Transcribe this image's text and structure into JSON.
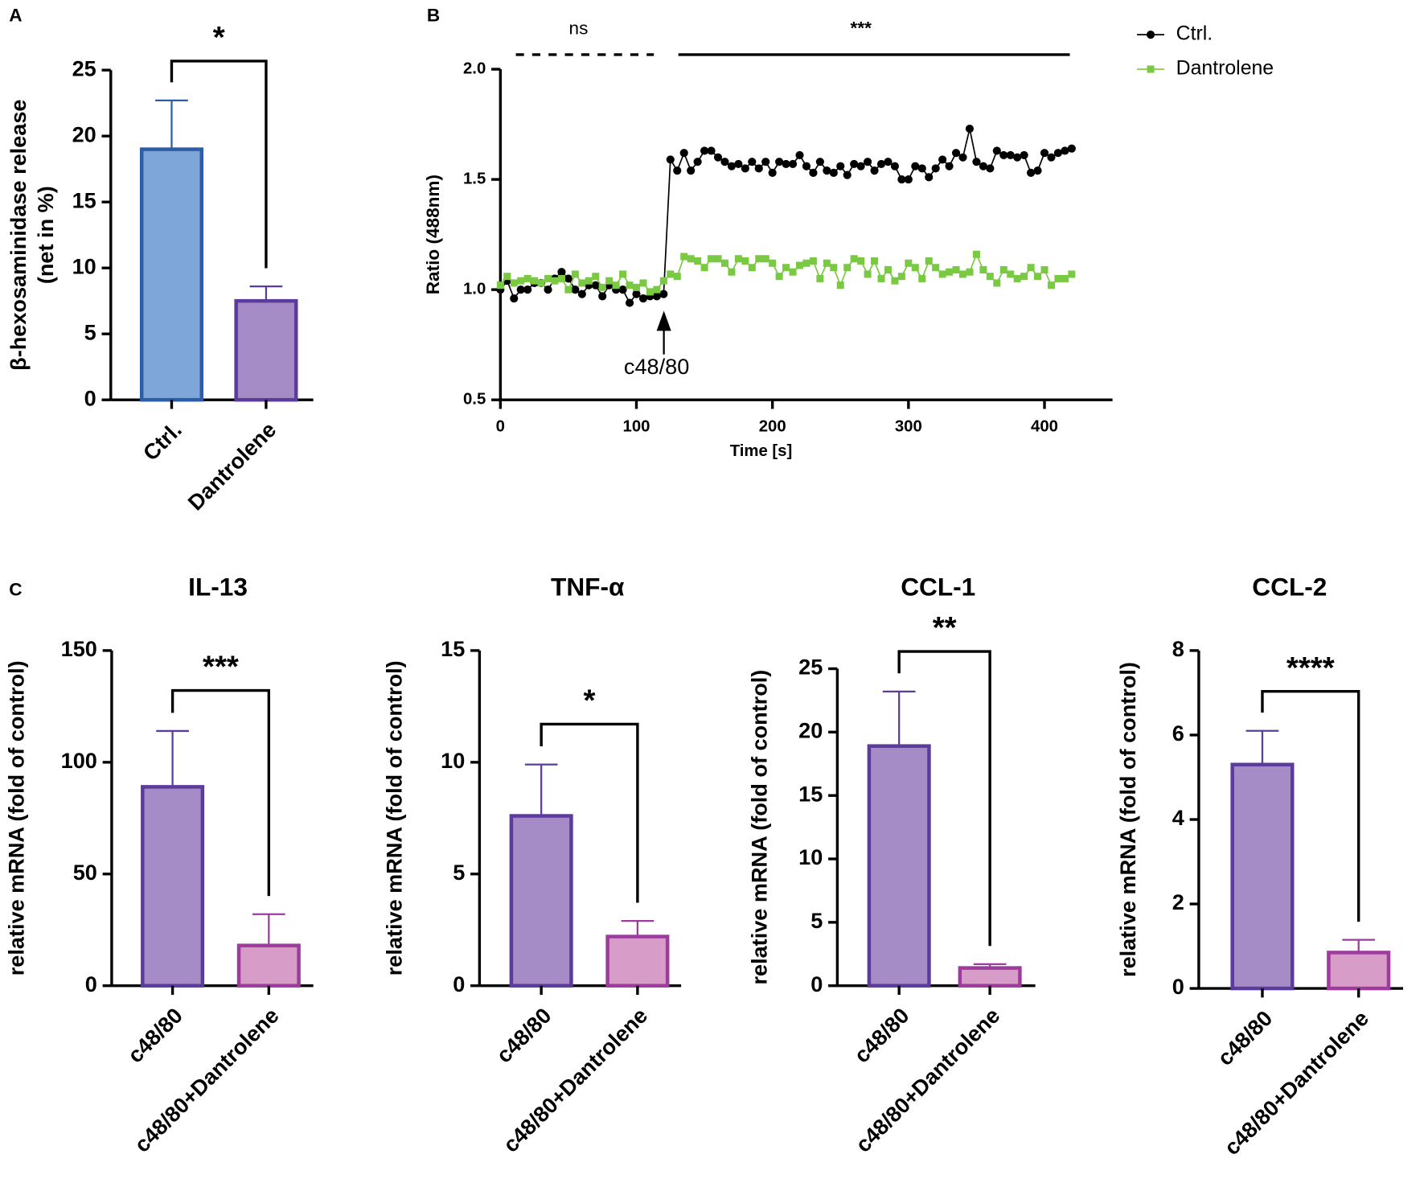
{
  "chart_data": [
    {
      "type": "bar",
      "panel": "A",
      "categories": [
        "Ctrl.",
        "Dantrolene"
      ],
      "values": [
        19,
        7.5
      ],
      "errors": [
        3.7,
        1.1
      ],
      "colors": [
        "#7ea6d8",
        "#a68cc6"
      ],
      "edge_colors": [
        "#2e5da8",
        "#5b3c9c"
      ],
      "y_label": [
        "β-hexosaminidase release",
        "(net in %)"
      ],
      "ylim": [
        0,
        25
      ],
      "yticks": [
        0,
        5,
        10,
        15,
        20,
        25
      ],
      "annotation": "*"
    },
    {
      "type": "line",
      "panel": "B",
      "x": [
        0,
        5,
        10,
        15,
        20,
        25,
        30,
        35,
        40,
        45,
        50,
        55,
        60,
        65,
        70,
        75,
        80,
        85,
        90,
        95,
        100,
        105,
        110,
        115,
        120,
        125,
        130,
        135,
        140,
        145,
        150,
        155,
        160,
        165,
        170,
        175,
        180,
        185,
        190,
        195,
        200,
        205,
        210,
        215,
        220,
        225,
        230,
        235,
        240,
        245,
        250,
        255,
        260,
        265,
        270,
        275,
        280,
        285,
        290,
        295,
        300,
        305,
        310,
        315,
        320,
        325,
        330,
        335,
        340,
        345,
        350,
        355,
        360,
        365,
        370,
        375,
        380,
        385,
        390,
        395,
        400,
        405,
        410,
        415,
        420
      ],
      "series": [
        {
          "name": "Ctrl.",
          "color": "#000000",
          "marker": "circle",
          "values": [
            1.0,
            1.04,
            0.96,
            1.0,
            1.0,
            1.03,
            1.03,
            1.0,
            1.05,
            1.08,
            1.05,
            1.0,
            0.98,
            1.02,
            1.02,
            0.97,
            1.02,
            1.0,
            1.0,
            0.94,
            0.98,
            0.96,
            0.97,
            0.97,
            0.98,
            1.59,
            1.54,
            1.62,
            1.54,
            1.58,
            1.63,
            1.63,
            1.6,
            1.58,
            1.56,
            1.57,
            1.55,
            1.58,
            1.55,
            1.58,
            1.53,
            1.58,
            1.57,
            1.57,
            1.61,
            1.56,
            1.53,
            1.58,
            1.54,
            1.53,
            1.56,
            1.52,
            1.57,
            1.56,
            1.58,
            1.54,
            1.57,
            1.58,
            1.56,
            1.5,
            1.5,
            1.56,
            1.55,
            1.51,
            1.55,
            1.59,
            1.56,
            1.62,
            1.6,
            1.73,
            1.58,
            1.56,
            1.55,
            1.63,
            1.61,
            1.61,
            1.6,
            1.61,
            1.53,
            1.54,
            1.62,
            1.6,
            1.62,
            1.63,
            1.64
          ]
        },
        {
          "name": "Dantrolene",
          "color": "#7ac943",
          "marker": "square",
          "values": [
            1.02,
            1.06,
            1.03,
            1.04,
            1.05,
            1.04,
            1.03,
            1.05,
            1.04,
            1.05,
            1.0,
            1.07,
            1.03,
            1.04,
            1.06,
            1.01,
            1.04,
            1.02,
            1.07,
            1.02,
            1.01,
            1.03,
            0.99,
            1.0,
            1.04,
            1.07,
            1.06,
            1.15,
            1.14,
            1.13,
            1.1,
            1.14,
            1.14,
            1.12,
            1.08,
            1.14,
            1.13,
            1.1,
            1.14,
            1.14,
            1.12,
            1.06,
            1.1,
            1.08,
            1.11,
            1.12,
            1.13,
            1.05,
            1.12,
            1.1,
            1.02,
            1.1,
            1.14,
            1.13,
            1.07,
            1.13,
            1.05,
            1.09,
            1.04,
            1.06,
            1.12,
            1.1,
            1.05,
            1.13,
            1.1,
            1.07,
            1.08,
            1.09,
            1.07,
            1.08,
            1.16,
            1.09,
            1.06,
            1.03,
            1.09,
            1.07,
            1.05,
            1.06,
            1.1,
            1.06,
            1.09,
            1.02,
            1.05,
            1.05,
            1.07
          ]
        }
      ],
      "xlim": [
        0,
        450
      ],
      "xticks": [
        0,
        100,
        200,
        300,
        400
      ],
      "ylim": [
        0.5,
        2.0
      ],
      "yticks": [
        0.5,
        {
          "value": 1.0,
          "label": "1.0"
        },
        1.5,
        {
          "value": 2.0,
          "label": "2.0"
        }
      ],
      "x_label": "Time [s]",
      "y_label": "Ratio (488nm)",
      "annotations": [
        "ns",
        "***",
        "c48/80"
      ],
      "legend": "upper right"
    },
    {
      "type": "bar",
      "panel": "C",
      "title": "IL-13",
      "categories": [
        "c48/80",
        "c48/80+Dantrolene"
      ],
      "values": [
        89,
        18
      ],
      "errors": [
        25,
        14
      ],
      "colors": [
        "#a68cc6",
        "#d89cc8"
      ],
      "edge_colors": [
        "#5b3c9c",
        "#9c3c9c"
      ],
      "y_label": "relative mRNA (fold of control)",
      "ylim": [
        0,
        150
      ],
      "yticks": [
        0,
        50,
        100,
        150
      ],
      "annotation": "***"
    },
    {
      "type": "bar",
      "title": "TNF-α",
      "categories": [
        "c48/80",
        "c48/80+Dantrolene"
      ],
      "values": [
        7.6,
        2.2
      ],
      "errors": [
        2.3,
        0.7
      ],
      "colors": [
        "#a68cc6",
        "#d89cc8"
      ],
      "edge_colors": [
        "#5b3c9c",
        "#9c3c9c"
      ],
      "y_label": "relative mRNA (fold of control)",
      "ylim": [
        0,
        15
      ],
      "yticks": [
        0,
        5,
        10,
        15
      ],
      "annotation": "*"
    },
    {
      "type": "bar",
      "title": "CCL-1",
      "categories": [
        "c48/80",
        "c48/80+Dantrolene"
      ],
      "values": [
        18.9,
        1.4
      ],
      "errors": [
        4.3,
        0.3
      ],
      "colors": [
        "#a68cc6",
        "#d89cc8"
      ],
      "edge_colors": [
        "#5b3c9c",
        "#9c3c9c"
      ],
      "y_label": "relative mRNA (fold of control)",
      "ylim": [
        0,
        25
      ],
      "yticks": [
        0,
        5,
        10,
        15,
        20,
        25
      ],
      "annotation": "**"
    },
    {
      "type": "bar",
      "title": "CCL-2",
      "categories": [
        "c48/80",
        "c48/80+Dantrolene"
      ],
      "values": [
        5.3,
        0.85
      ],
      "errors": [
        0.8,
        0.3
      ],
      "colors": [
        "#a68cc6",
        "#d89cc8"
      ],
      "edge_colors": [
        "#5b3c9c",
        "#9c3c9c"
      ],
      "y_label": "relative mRNA (fold of control)",
      "ylim": [
        0,
        8
      ],
      "yticks": [
        0,
        2,
        4,
        6,
        8
      ],
      "annotation": "****"
    }
  ]
}
